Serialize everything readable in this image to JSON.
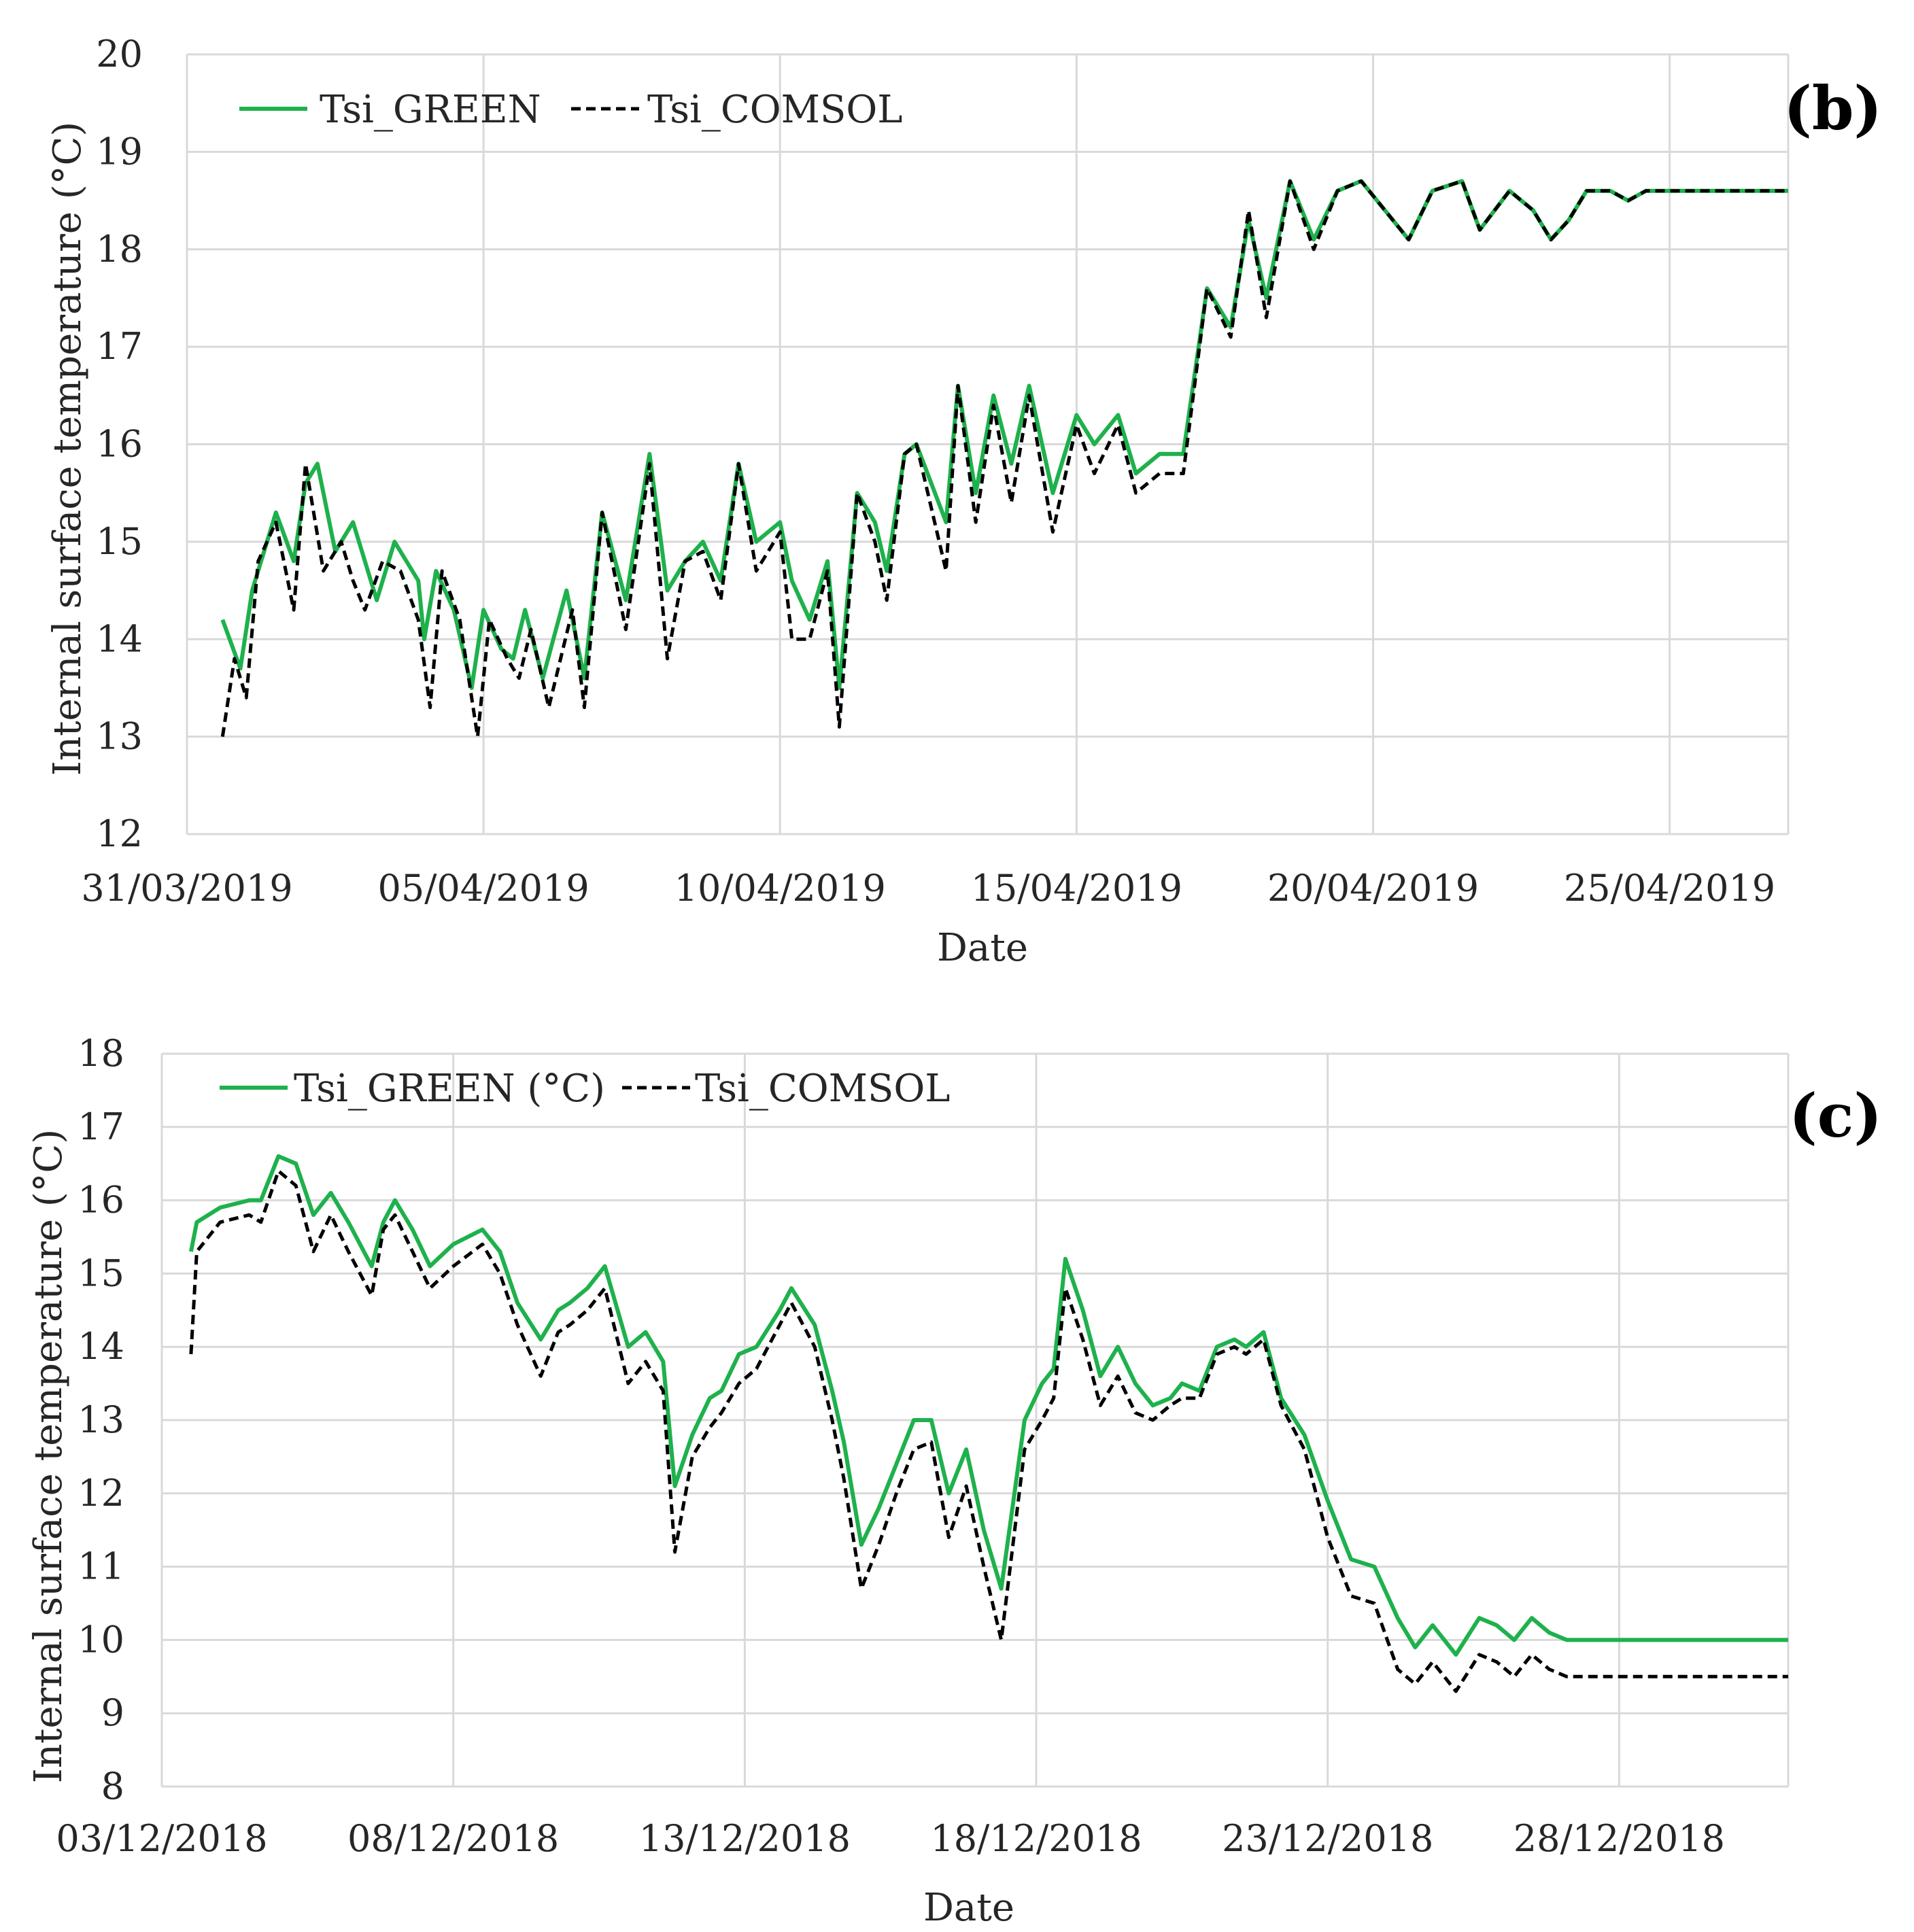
{
  "colors": {
    "green": "#1eb14c",
    "comsol": "#000000",
    "grid": "#d9d9d9"
  },
  "chart_data": [
    {
      "type": "line",
      "panel_label": "(b)",
      "xlabel": "Date",
      "ylabel": "Internal surface temperature (°C)",
      "ylim": [
        12,
        20
      ],
      "y_ticks": [
        "12",
        "13",
        "14",
        "15",
        "16",
        "17",
        "18",
        "19",
        "20"
      ],
      "x_ticks": [
        "31/03/2019",
        "05/04/2019",
        "10/04/2019",
        "15/04/2019",
        "20/04/2019",
        "25/04/2019"
      ],
      "x_tick_days": [
        0,
        5,
        10,
        15,
        20,
        25
      ],
      "xlim_days": [
        0,
        27
      ],
      "x_unit": "days since 31/03/2019",
      "legend_position": "top-left",
      "series": [
        {
          "name": "Tsi_GREEN",
          "style": "solid",
          "x": [
            0.6,
            0.9,
            1.1,
            1.5,
            1.8,
            2.0,
            2.2,
            2.5,
            2.8,
            3.0,
            3.2,
            3.5,
            3.7,
            3.9,
            4.0,
            4.2,
            4.5,
            4.8,
            5.0,
            5.3,
            5.5,
            5.7,
            6.0,
            6.4,
            6.7,
            7.0,
            7.4,
            7.8,
            8.1,
            8.4,
            8.7,
            9.0,
            9.3,
            9.6,
            10.0,
            10.2,
            10.5,
            10.8,
            11.0,
            11.3,
            11.6,
            11.8,
            12.1,
            12.3,
            12.8,
            13.0,
            13.3,
            13.6,
            13.9,
            14.2,
            14.6,
            15.0,
            15.3,
            15.7,
            16.0,
            16.4,
            16.8,
            17.2,
            17.6,
            17.9,
            18.2,
            18.6,
            19.0,
            19.4,
            19.8,
            20.2,
            20.6,
            21.0,
            21.5,
            21.8,
            22.3,
            22.7,
            23.0,
            23.3,
            23.6,
            24.0,
            24.3,
            24.6,
            25.0,
            25.4,
            25.7,
            26.0,
            26.4,
            26.7,
            27.0
          ],
          "y": [
            14.2,
            13.7,
            14.5,
            15.3,
            14.8,
            15.6,
            15.8,
            14.9,
            15.2,
            14.8,
            14.4,
            15.0,
            14.8,
            14.6,
            14.0,
            14.7,
            14.3,
            13.5,
            14.3,
            13.9,
            13.8,
            14.3,
            13.6,
            14.5,
            13.6,
            15.3,
            14.4,
            15.9,
            14.5,
            14.8,
            15.0,
            14.6,
            15.8,
            15.0,
            15.2,
            14.6,
            14.2,
            14.8,
            13.5,
            15.5,
            15.2,
            14.7,
            15.9,
            16.0,
            15.2,
            16.6,
            15.5,
            16.5,
            15.8,
            16.6,
            15.5,
            16.3,
            16.0,
            16.3,
            15.7,
            15.9,
            15.9,
            17.6,
            17.2,
            18.3,
            17.5,
            18.7,
            18.1,
            18.6,
            18.7,
            18.4,
            18.1,
            18.6,
            18.7,
            18.2,
            18.6,
            18.4,
            18.1,
            18.3,
            18.6,
            18.6,
            18.5,
            18.6,
            18.6,
            18.6,
            18.6,
            18.6,
            18.6,
            18.6,
            18.6
          ],
          "x_note": "ten-day-extension"
        },
        {
          "name": "Tsi_COMSOL",
          "style": "dashed",
          "x": [
            0.6,
            0.8,
            1.0,
            1.2,
            1.5,
            1.8,
            2.0,
            2.3,
            2.6,
            2.8,
            3.0,
            3.3,
            3.6,
            3.9,
            4.1,
            4.3,
            4.6,
            4.9,
            5.1,
            5.4,
            5.6,
            5.8,
            6.1,
            6.5,
            6.7,
            7.0,
            7.4,
            7.8,
            8.1,
            8.4,
            8.7,
            9.0,
            9.3,
            9.6,
            10.0,
            10.2,
            10.5,
            10.8,
            11.0,
            11.3,
            11.6,
            11.8,
            12.1,
            12.3,
            12.8,
            13.0,
            13.3,
            13.6,
            13.9,
            14.2,
            14.6,
            15.0,
            15.3,
            15.7,
            16.0,
            16.4,
            16.8,
            17.2,
            17.6,
            17.9,
            18.2,
            18.6,
            19.0,
            19.4,
            19.8,
            20.2,
            20.6,
            21.0,
            21.5,
            21.8,
            22.3,
            22.7,
            23.0,
            23.3,
            23.6,
            24.0,
            24.3,
            24.6,
            25.0,
            25.4,
            25.7,
            26.0,
            26.4,
            26.7,
            27.0
          ],
          "y": [
            13.0,
            13.8,
            13.4,
            14.8,
            15.2,
            14.3,
            15.8,
            14.7,
            15.0,
            14.6,
            14.3,
            14.8,
            14.7,
            14.2,
            13.3,
            14.7,
            14.2,
            13.0,
            14.2,
            13.8,
            13.6,
            14.1,
            13.3,
            14.3,
            13.3,
            15.3,
            14.1,
            15.8,
            13.8,
            14.8,
            14.9,
            14.4,
            15.8,
            14.7,
            15.1,
            14.0,
            14.0,
            14.7,
            13.1,
            15.5,
            15.0,
            14.4,
            15.9,
            16.0,
            14.7,
            16.6,
            15.2,
            16.4,
            15.4,
            16.5,
            15.1,
            16.2,
            15.7,
            16.2,
            15.5,
            15.7,
            15.7,
            17.6,
            17.1,
            18.4,
            17.3,
            18.7,
            18.0,
            18.6,
            18.7,
            18.4,
            18.1,
            18.6,
            18.7,
            18.2,
            18.6,
            18.4,
            18.1,
            18.3,
            18.6,
            18.6,
            18.5,
            18.6,
            18.6,
            18.6,
            18.6,
            18.6,
            18.6,
            18.6,
            18.6
          ]
        }
      ]
    },
    {
      "type": "line",
      "panel_label": "(c)",
      "xlabel": "Date",
      "ylabel": "Internal surface temperature (°C)",
      "ylim": [
        8,
        18
      ],
      "y_ticks": [
        "8",
        "9",
        "10",
        "11",
        "12",
        "13",
        "14",
        "15",
        "16",
        "17",
        "18"
      ],
      "x_ticks": [
        "03/12/2018",
        "08/12/2018",
        "13/12/2018",
        "18/12/2018",
        "23/12/2018",
        "28/12/2018"
      ],
      "x_tick_days": [
        0,
        5,
        10,
        15,
        20,
        25
      ],
      "xlim_days": [
        0,
        27.9
      ],
      "x_unit": "days since 03/12/2018",
      "legend_position": "top-left",
      "series": [
        {
          "name": "Tsi_GREEN (°C)",
          "style": "solid",
          "x": [
            0.5,
            0.6,
            1.0,
            1.5,
            1.7,
            2.0,
            2.3,
            2.6,
            2.9,
            3.2,
            3.6,
            3.8,
            4.0,
            4.3,
            4.6,
            5.0,
            5.5,
            5.8,
            6.1,
            6.5,
            6.8,
            7.0,
            7.3,
            7.6,
            8.0,
            8.3,
            8.6,
            8.8,
            9.1,
            9.4,
            9.6,
            9.9,
            10.2,
            10.6,
            10.8,
            11.2,
            11.5,
            11.7,
            12.0,
            12.3,
            12.6,
            12.9,
            13.2,
            13.5,
            13.8,
            14.1,
            14.4,
            14.8,
            15.1,
            15.3,
            15.5,
            15.8,
            16.1,
            16.4,
            16.7,
            17.0,
            17.3,
            17.5,
            17.8,
            18.1,
            18.4,
            18.6,
            18.9,
            19.2,
            19.6,
            20.0,
            20.4,
            20.8,
            21.2,
            21.5,
            21.8,
            22.2,
            22.6,
            22.9,
            23.2,
            23.5,
            23.8,
            24.1,
            24.4,
            24.8,
            25.0,
            25.3,
            25.6,
            26.0,
            26.3,
            26.6,
            27.0,
            27.3,
            27.6,
            27.9
          ],
          "y": [
            15.3,
            15.7,
            15.9,
            16.0,
            16.0,
            16.6,
            16.5,
            15.8,
            16.1,
            15.7,
            15.1,
            15.7,
            16.0,
            15.6,
            15.1,
            15.4,
            15.6,
            15.3,
            14.6,
            14.1,
            14.5,
            14.6,
            14.8,
            15.1,
            14.0,
            14.2,
            13.8,
            12.1,
            12.8,
            13.3,
            13.4,
            13.9,
            14.0,
            14.5,
            14.8,
            14.3,
            13.4,
            12.7,
            11.3,
            11.8,
            12.4,
            13.0,
            13.0,
            12.0,
            12.6,
            11.5,
            10.7,
            13.0,
            13.5,
            13.7,
            15.2,
            14.5,
            13.6,
            14.0,
            13.5,
            13.2,
            13.3,
            13.5,
            13.4,
            14.0,
            14.1,
            14.0,
            14.2,
            13.3,
            12.8,
            11.9,
            11.1,
            11.0,
            10.3,
            9.9,
            10.2,
            9.8,
            10.3,
            10.2,
            10.0,
            10.3,
            10.1,
            10.0,
            10.0,
            10.0,
            10.0,
            10.0,
            10.0,
            10.0,
            10.0,
            10.0,
            10.0,
            10.0,
            10.0,
            10.0
          ]
        },
        {
          "name": "Tsi_COMSOL",
          "style": "dashed",
          "x": [
            0.5,
            0.6,
            1.0,
            1.5,
            1.7,
            2.0,
            2.3,
            2.6,
            2.9,
            3.2,
            3.6,
            3.8,
            4.0,
            4.3,
            4.6,
            5.0,
            5.5,
            5.8,
            6.1,
            6.5,
            6.8,
            7.0,
            7.3,
            7.6,
            8.0,
            8.3,
            8.6,
            8.8,
            9.1,
            9.4,
            9.6,
            9.9,
            10.2,
            10.6,
            10.8,
            11.2,
            11.5,
            11.7,
            12.0,
            12.3,
            12.6,
            12.9,
            13.2,
            13.5,
            13.8,
            14.1,
            14.4,
            14.8,
            15.1,
            15.3,
            15.5,
            15.8,
            16.1,
            16.4,
            16.7,
            17.0,
            17.3,
            17.5,
            17.8,
            18.1,
            18.4,
            18.6,
            18.9,
            19.2,
            19.6,
            20.0,
            20.4,
            20.8,
            21.2,
            21.5,
            21.8,
            22.2,
            22.6,
            22.9,
            23.2,
            23.5,
            23.8,
            24.1,
            24.4,
            24.8,
            25.0,
            25.3,
            25.6,
            26.0,
            26.3,
            26.6,
            27.0,
            27.3,
            27.6,
            27.9
          ],
          "y": [
            13.9,
            15.3,
            15.7,
            15.8,
            15.7,
            16.4,
            16.2,
            15.3,
            15.8,
            15.3,
            14.7,
            15.6,
            15.8,
            15.3,
            14.8,
            15.1,
            15.4,
            15.0,
            14.3,
            13.6,
            14.2,
            14.3,
            14.5,
            14.8,
            13.5,
            13.8,
            13.4,
            11.2,
            12.5,
            12.9,
            13.1,
            13.5,
            13.7,
            14.3,
            14.6,
            14.0,
            13.0,
            12.2,
            10.7,
            11.3,
            12.0,
            12.6,
            12.7,
            11.4,
            12.1,
            11.0,
            10.0,
            12.6,
            13.0,
            13.3,
            14.8,
            14.1,
            13.2,
            13.6,
            13.1,
            13.0,
            13.2,
            13.3,
            13.3,
            13.9,
            14.0,
            13.9,
            14.1,
            13.2,
            12.6,
            11.4,
            10.6,
            10.5,
            9.6,
            9.4,
            9.7,
            9.3,
            9.8,
            9.7,
            9.5,
            9.8,
            9.6,
            9.5,
            9.5,
            9.5,
            9.5,
            9.5,
            9.5,
            9.5,
            9.5,
            9.5,
            9.5,
            9.5,
            9.5,
            9.5
          ]
        }
      ]
    }
  ]
}
